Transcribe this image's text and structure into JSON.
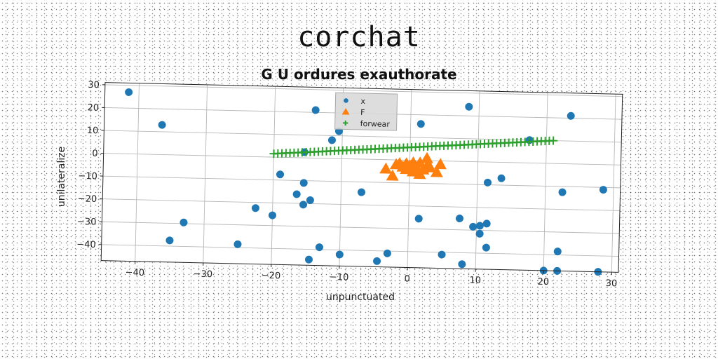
{
  "figure": {
    "suptitle": "corchat"
  },
  "chart_data": {
    "type": "scatter",
    "title": "G U ordures exauthorate",
    "xlabel": "unpunctuated",
    "ylabel": "unilateralize",
    "xlim": [
      -45,
      31
    ],
    "ylim": [
      -47,
      31
    ],
    "xticks": [
      -40,
      -30,
      -20,
      -10,
      0,
      10,
      20,
      30
    ],
    "yticks": [
      -40,
      -30,
      -20,
      -10,
      0,
      10,
      20,
      30
    ],
    "grid": true,
    "legend_position": "top-center",
    "series": [
      {
        "name": "x",
        "marker": "circle",
        "color": "#1f77b4",
        "points": [
          [
            -41.5,
            27
          ],
          [
            -36.5,
            13
          ],
          [
            -14,
            21
          ],
          [
            -11.5,
            8
          ],
          [
            -10.5,
            12
          ],
          [
            1.5,
            16
          ],
          [
            8.5,
            24
          ],
          [
            23.5,
            21
          ],
          [
            17.5,
            10
          ],
          [
            -15.5,
            2.5
          ],
          [
            -19,
            -7.5
          ],
          [
            -15.5,
            -11
          ],
          [
            -16.5,
            -16
          ],
          [
            -15.5,
            -20.5
          ],
          [
            -14.5,
            -18.5
          ],
          [
            -7,
            -14.5
          ],
          [
            -22.5,
            -22.5
          ],
          [
            -20,
            -25.5
          ],
          [
            -33,
            -29.5
          ],
          [
            -35,
            -37.5
          ],
          [
            -25,
            -38.5
          ],
          [
            -13,
            -39
          ],
          [
            -10,
            -42
          ],
          [
            -4.5,
            -44.5
          ],
          [
            -3,
            -41
          ],
          [
            1.5,
            -25.5
          ],
          [
            7.5,
            -25
          ],
          [
            9.5,
            -28.5
          ],
          [
            10.5,
            -28
          ],
          [
            11.5,
            -27
          ],
          [
            10.5,
            -31.5
          ],
          [
            11.5,
            -37.5
          ],
          [
            5,
            -41
          ],
          [
            8,
            -45
          ],
          [
            -14.5,
            -44.5
          ],
          [
            11.5,
            -9
          ],
          [
            13.5,
            -7
          ],
          [
            22.5,
            -12.5
          ],
          [
            28.5,
            -11
          ],
          [
            22,
            -38.5
          ],
          [
            20,
            -47
          ],
          [
            22,
            -47
          ],
          [
            28,
            -47
          ]
        ]
      },
      {
        "name": "F",
        "marker": "triangle",
        "color": "#ff7f0e",
        "points": [
          [
            -3.5,
            -4
          ],
          [
            -2.5,
            -7
          ],
          [
            -2,
            -2
          ],
          [
            -1.5,
            -1.5
          ],
          [
            -1,
            -3
          ],
          [
            -0.5,
            -4
          ],
          [
            0,
            -2.5
          ],
          [
            0.5,
            -1
          ],
          [
            0.5,
            -5
          ],
          [
            1,
            -3
          ],
          [
            1.5,
            -6
          ],
          [
            1.5,
            -1
          ],
          [
            2,
            -4
          ],
          [
            2.5,
            -2.5
          ],
          [
            2.5,
            1
          ],
          [
            3,
            -3
          ],
          [
            4,
            -5
          ],
          [
            4.5,
            -1.5
          ],
          [
            1,
            -4
          ],
          [
            -0.5,
            -1.5
          ]
        ]
      },
      {
        "name": "forwear",
        "marker": "plus",
        "color": "#2ca02c",
        "line_x_range": [
          -20,
          21
        ],
        "line_y_range": [
          1.5,
          10
        ],
        "n_points": 70
      }
    ]
  }
}
